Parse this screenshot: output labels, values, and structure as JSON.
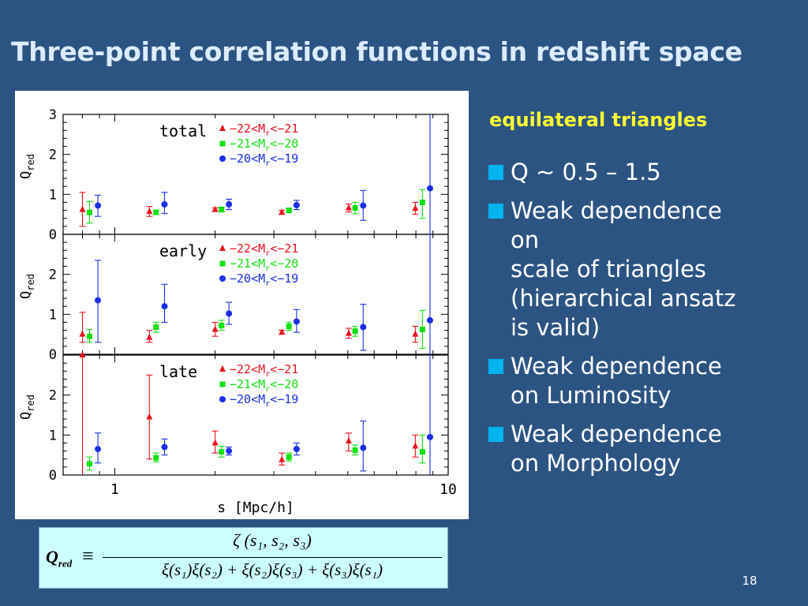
{
  "slide": {
    "title": "Three-point correlation functions in redshift space",
    "subheading": "equilateral triangles",
    "page_number": "18",
    "bullets": [
      {
        "lines": [
          "Q ~ 0.5 – 1.5"
        ]
      },
      {
        "lines": [
          "Weak dependence",
          "on",
          "scale of triangles",
          "(hierarchical ansatz",
          "is valid)"
        ]
      },
      {
        "lines": [
          "Weak dependence",
          "on Luminosity"
        ]
      },
      {
        "lines": [
          "Weak dependence",
          "on Morphology"
        ]
      }
    ],
    "formula": {
      "lhs": "Q",
      "lhs_sub": "red",
      "equiv": "≡",
      "numerator": "ζ (s₁, s₂, s₃)",
      "denominator": "ξ(s₁)ξ(s₂) + ξ(s₂)ξ(s₃) + ξ(s₃)ξ(s₁)"
    }
  },
  "colors": {
    "background": "#2c5482",
    "title": "#dcecff",
    "subheading": "#ffff33",
    "bullet_marker": "#00b4f0",
    "formula_bg": "#ccffff",
    "series_red": "#e8141e",
    "series_green": "#11e011",
    "series_blue": "#1a2ee6"
  },
  "chart_data": {
    "type": "scatter",
    "xscale": "log",
    "xlim": [
      0.7,
      10
    ],
    "xlabel": "s [Mpc/h]",
    "xticks": [
      1,
      10
    ],
    "ylabel_main": "Q",
    "ylabel_sub": "red",
    "legend_sub": "r",
    "legend_position": "top-right",
    "series_styles": [
      {
        "color": "#e8141e",
        "marker": "triangle"
      },
      {
        "color": "#11e011",
        "marker": "square"
      },
      {
        "color": "#1a2ee6",
        "marker": "circle"
      }
    ],
    "panels": [
      {
        "label": "total",
        "ylim": [
          0,
          3
        ],
        "yticks": [
          0,
          1,
          2,
          3
        ],
        "series": [
          {
            "name": "−22<M<−21",
            "points": [
              {
                "x": 0.8,
                "y": 0.62,
                "lo": 0.2,
                "hi": 1.05
              },
              {
                "x": 1.27,
                "y": 0.57,
                "lo": 0.45,
                "hi": 0.7
              },
              {
                "x": 2.0,
                "y": 0.62,
                "lo": 0.58,
                "hi": 0.66
              },
              {
                "x": 3.17,
                "y": 0.55,
                "lo": 0.5,
                "hi": 0.6
              },
              {
                "x": 5.03,
                "y": 0.66,
                "lo": 0.56,
                "hi": 0.76
              },
              {
                "x": 7.97,
                "y": 0.65,
                "lo": 0.5,
                "hi": 0.8
              }
            ]
          },
          {
            "name": "−21<M<−20",
            "points": [
              {
                "x": 0.84,
                "y": 0.55,
                "lo": 0.28,
                "hi": 0.82
              },
              {
                "x": 1.33,
                "y": 0.55,
                "lo": 0.5,
                "hi": 0.6
              },
              {
                "x": 2.09,
                "y": 0.62,
                "lo": 0.56,
                "hi": 0.68
              },
              {
                "x": 3.33,
                "y": 0.6,
                "lo": 0.55,
                "hi": 0.65
              },
              {
                "x": 5.26,
                "y": 0.66,
                "lo": 0.52,
                "hi": 0.8
              },
              {
                "x": 8.37,
                "y": 0.8,
                "lo": 0.4,
                "hi": 1.12
              }
            ]
          },
          {
            "name": "−20<M<−19",
            "points": [
              {
                "x": 0.89,
                "y": 0.72,
                "lo": 0.45,
                "hi": 0.98
              },
              {
                "x": 1.41,
                "y": 0.75,
                "lo": 0.52,
                "hi": 1.05
              },
              {
                "x": 2.2,
                "y": 0.75,
                "lo": 0.62,
                "hi": 0.88
              },
              {
                "x": 3.51,
                "y": 0.73,
                "lo": 0.62,
                "hi": 0.85
              },
              {
                "x": 5.56,
                "y": 0.72,
                "lo": 0.35,
                "hi": 1.1
              },
              {
                "x": 8.82,
                "y": 1.15,
                "lo": 0.0,
                "hi": 3.0
              }
            ]
          }
        ]
      },
      {
        "label": "early",
        "ylim": [
          0,
          3
        ],
        "yticks": [
          0,
          1,
          2
        ],
        "series": [
          {
            "name": "−22<M<−21",
            "points": [
              {
                "x": 0.8,
                "y": 0.5,
                "lo": 0.3,
                "hi": 1.05
              },
              {
                "x": 1.27,
                "y": 0.42,
                "lo": 0.3,
                "hi": 0.6
              },
              {
                "x": 2.0,
                "y": 0.62,
                "lo": 0.45,
                "hi": 0.8
              },
              {
                "x": 3.17,
                "y": 0.55,
                "lo": 0.5,
                "hi": 0.6
              },
              {
                "x": 5.03,
                "y": 0.52,
                "lo": 0.4,
                "hi": 0.65
              },
              {
                "x": 7.97,
                "y": 0.5,
                "lo": 0.3,
                "hi": 0.7
              }
            ]
          },
          {
            "name": "−21<M<−20",
            "points": [
              {
                "x": 0.84,
                "y": 0.45,
                "lo": 0.3,
                "hi": 0.62
              },
              {
                "x": 1.33,
                "y": 0.68,
                "lo": 0.55,
                "hi": 0.8
              },
              {
                "x": 2.09,
                "y": 0.72,
                "lo": 0.6,
                "hi": 0.85
              },
              {
                "x": 3.33,
                "y": 0.7,
                "lo": 0.6,
                "hi": 0.8
              },
              {
                "x": 5.26,
                "y": 0.58,
                "lo": 0.45,
                "hi": 0.7
              },
              {
                "x": 8.37,
                "y": 0.62,
                "lo": 0.15,
                "hi": 1.1
              }
            ]
          },
          {
            "name": "−20<M<−19",
            "points": [
              {
                "x": 0.89,
                "y": 1.35,
                "lo": 0.3,
                "hi": 2.35
              },
              {
                "x": 1.41,
                "y": 1.2,
                "lo": 0.8,
                "hi": 1.75
              },
              {
                "x": 2.2,
                "y": 1.02,
                "lo": 0.75,
                "hi": 1.3
              },
              {
                "x": 3.51,
                "y": 0.82,
                "lo": 0.55,
                "hi": 1.12
              },
              {
                "x": 5.56,
                "y": 0.68,
                "lo": 0.1,
                "hi": 1.25
              },
              {
                "x": 8.82,
                "y": 0.85,
                "lo": 0.0,
                "hi": 3.0
              }
            ]
          }
        ]
      },
      {
        "label": "late",
        "ylim": [
          0,
          3
        ],
        "yticks": [
          0,
          1,
          2
        ],
        "series": [
          {
            "name": "−22<M<−21",
            "points": [
              {
                "x": 0.8,
                "y": 3.0,
                "lo": 0.0,
                "hi": 3.0
              },
              {
                "x": 1.27,
                "y": 1.45,
                "lo": 0.4,
                "hi": 2.5
              },
              {
                "x": 2.0,
                "y": 0.8,
                "lo": 0.55,
                "hi": 1.1
              },
              {
                "x": 3.17,
                "y": 0.38,
                "lo": 0.25,
                "hi": 0.55
              },
              {
                "x": 5.03,
                "y": 0.85,
                "lo": 0.6,
                "hi": 1.05
              },
              {
                "x": 7.97,
                "y": 0.72,
                "lo": 0.45,
                "hi": 1.0
              }
            ]
          },
          {
            "name": "−21<M<−20",
            "points": [
              {
                "x": 0.84,
                "y": 0.28,
                "lo": 0.12,
                "hi": 0.45
              },
              {
                "x": 1.33,
                "y": 0.43,
                "lo": 0.33,
                "hi": 0.55
              },
              {
                "x": 2.09,
                "y": 0.58,
                "lo": 0.45,
                "hi": 0.72
              },
              {
                "x": 3.33,
                "y": 0.45,
                "lo": 0.35,
                "hi": 0.55
              },
              {
                "x": 5.26,
                "y": 0.62,
                "lo": 0.5,
                "hi": 0.75
              },
              {
                "x": 8.37,
                "y": 0.58,
                "lo": 0.3,
                "hi": 1.0
              }
            ]
          },
          {
            "name": "−20<M<−19",
            "points": [
              {
                "x": 0.89,
                "y": 0.65,
                "lo": 0.3,
                "hi": 1.05
              },
              {
                "x": 1.41,
                "y": 0.7,
                "lo": 0.5,
                "hi": 0.9
              },
              {
                "x": 2.2,
                "y": 0.6,
                "lo": 0.5,
                "hi": 0.7
              },
              {
                "x": 3.51,
                "y": 0.65,
                "lo": 0.5,
                "hi": 0.8
              },
              {
                "x": 5.56,
                "y": 0.68,
                "lo": 0.1,
                "hi": 1.35
              },
              {
                "x": 8.82,
                "y": 0.95,
                "lo": 0.0,
                "hi": 3.0
              }
            ]
          }
        ]
      }
    ]
  }
}
